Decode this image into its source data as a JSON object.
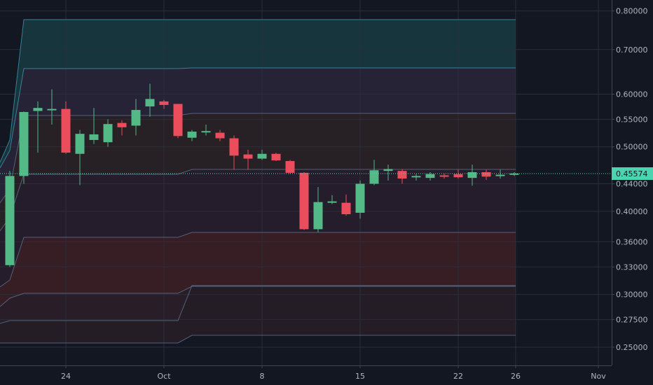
{
  "chart_data": {
    "type": "candlestick",
    "y_scale": "log",
    "ylim": [
      0.237,
      0.815
    ],
    "x_ticks": [
      "24",
      "Oct",
      "8",
      "15",
      "22",
      "26",
      "Nov"
    ],
    "y_ticks": [
      "0.80000",
      "0.70000",
      "0.60000",
      "0.55000",
      "0.50000",
      "0.44000",
      "0.40000",
      "0.36000",
      "0.33000",
      "0.30000",
      "0.27500",
      "0.25000"
    ],
    "last_price_label": "0.45574",
    "last_price": 0.45574,
    "colors": {
      "background": "#131722",
      "up": "#53b987",
      "down": "#eb4d5c",
      "last_price": "#4bd4b0",
      "grid": "#2a2e39",
      "band_line": "#5b6c87"
    },
    "band_levels_final": [
      0.75,
      0.645,
      0.55,
      0.46,
      0.36,
      0.3,
      0.2535
    ],
    "candles": [
      {
        "date": "Sep 18",
        "o": 0.332,
        "h": 0.46,
        "l": 0.33,
        "c": 0.452
      },
      {
        "date": "Sep 19",
        "o": 0.452,
        "h": 0.565,
        "l": 0.44,
        "c": 0.564
      },
      {
        "date": "Sep 20",
        "o": 0.566,
        "h": 0.585,
        "l": 0.49,
        "c": 0.572
      },
      {
        "date": "Sep 21",
        "o": 0.57,
        "h": 0.61,
        "l": 0.54,
        "c": 0.57
      },
      {
        "date": "Sep 24",
        "o": 0.57,
        "h": 0.585,
        "l": 0.488,
        "c": 0.49
      },
      {
        "date": "Sep 25",
        "o": 0.488,
        "h": 0.53,
        "l": 0.438,
        "c": 0.523
      },
      {
        "date": "Sep 26",
        "o": 0.512,
        "h": 0.572,
        "l": 0.505,
        "c": 0.522
      },
      {
        "date": "Sep 27",
        "o": 0.508,
        "h": 0.55,
        "l": 0.5,
        "c": 0.541
      },
      {
        "date": "Sep 28",
        "o": 0.543,
        "h": 0.548,
        "l": 0.52,
        "c": 0.535
      },
      {
        "date": "Sep 29",
        "o": 0.538,
        "h": 0.59,
        "l": 0.52,
        "c": 0.568
      },
      {
        "date": "Sep 30",
        "o": 0.575,
        "h": 0.622,
        "l": 0.555,
        "c": 0.59
      },
      {
        "date": "Oct 1",
        "o": 0.585,
        "h": 0.588,
        "l": 0.57,
        "c": 0.578
      },
      {
        "date": "Oct 2",
        "o": 0.58,
        "h": 0.58,
        "l": 0.515,
        "c": 0.519
      },
      {
        "date": "Oct 3",
        "o": 0.516,
        "h": 0.53,
        "l": 0.51,
        "c": 0.527
      },
      {
        "date": "Oct 4",
        "o": 0.526,
        "h": 0.54,
        "l": 0.52,
        "c": 0.528
      },
      {
        "date": "Oct 5",
        "o": 0.525,
        "h": 0.53,
        "l": 0.51,
        "c": 0.515
      },
      {
        "date": "Oct 6",
        "o": 0.515,
        "h": 0.52,
        "l": 0.462,
        "c": 0.485
      },
      {
        "date": "Oct 7",
        "o": 0.487,
        "h": 0.495,
        "l": 0.462,
        "c": 0.48
      },
      {
        "date": "Oct 8",
        "o": 0.48,
        "h": 0.495,
        "l": 0.478,
        "c": 0.488
      },
      {
        "date": "Oct 9",
        "o": 0.488,
        "h": 0.49,
        "l": 0.476,
        "c": 0.477
      },
      {
        "date": "Oct 10",
        "o": 0.476,
        "h": 0.478,
        "l": 0.455,
        "c": 0.457
      },
      {
        "date": "Oct 11",
        "o": 0.457,
        "h": 0.458,
        "l": 0.375,
        "c": 0.376
      },
      {
        "date": "Oct 12",
        "o": 0.376,
        "h": 0.435,
        "l": 0.372,
        "c": 0.413
      },
      {
        "date": "Oct 13",
        "o": 0.413,
        "h": 0.423,
        "l": 0.41,
        "c": 0.414
      },
      {
        "date": "Oct 14",
        "o": 0.412,
        "h": 0.424,
        "l": 0.394,
        "c": 0.396
      },
      {
        "date": "Oct 15",
        "o": 0.398,
        "h": 0.445,
        "l": 0.39,
        "c": 0.44
      },
      {
        "date": "Oct 16",
        "o": 0.44,
        "h": 0.478,
        "l": 0.438,
        "c": 0.461
      },
      {
        "date": "Oct 17",
        "o": 0.46,
        "h": 0.47,
        "l": 0.445,
        "c": 0.463
      },
      {
        "date": "Oct 18",
        "o": 0.46,
        "h": 0.463,
        "l": 0.44,
        "c": 0.448
      },
      {
        "date": "Oct 19",
        "o": 0.45,
        "h": 0.455,
        "l": 0.445,
        "c": 0.452
      },
      {
        "date": "Oct 20",
        "o": 0.449,
        "h": 0.458,
        "l": 0.445,
        "c": 0.455
      },
      {
        "date": "Oct 21",
        "o": 0.453,
        "h": 0.456,
        "l": 0.448,
        "c": 0.452
      },
      {
        "date": "Oct 22",
        "o": 0.455,
        "h": 0.462,
        "l": 0.448,
        "c": 0.45
      },
      {
        "date": "Oct 23",
        "o": 0.449,
        "h": 0.47,
        "l": 0.437,
        "c": 0.458
      },
      {
        "date": "Oct 24",
        "o": 0.458,
        "h": 0.462,
        "l": 0.446,
        "c": 0.451
      },
      {
        "date": "Oct 25",
        "o": 0.452,
        "h": 0.462,
        "l": 0.448,
        "c": 0.454
      },
      {
        "date": "Oct 26",
        "o": 0.455,
        "h": 0.458,
        "l": 0.452,
        "c": 0.456
      }
    ]
  }
}
